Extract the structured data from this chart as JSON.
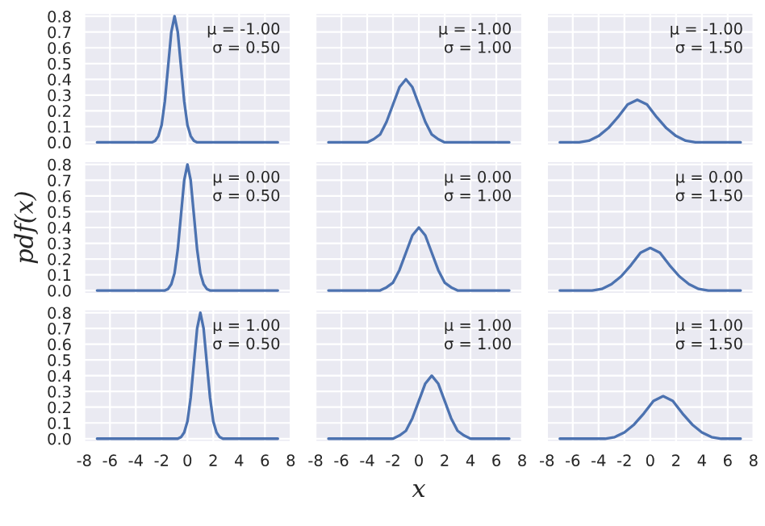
{
  "chart_data": [
    {
      "type": "line",
      "x": [
        -7,
        -3,
        -2.75,
        -2.5,
        -2.25,
        -2,
        -1.75,
        -1.5,
        -1.25,
        -1,
        -0.75,
        -0.5,
        -0.25,
        0,
        0.25,
        0.5,
        0.75,
        1,
        7
      ],
      "values": [
        0,
        0,
        0,
        0.01,
        0.04,
        0.11,
        0.26,
        0.48,
        0.7,
        0.8,
        0.7,
        0.48,
        0.26,
        0.11,
        0.04,
        0.01,
        0,
        0,
        0
      ],
      "color": "#4c72b0",
      "annotations": [
        "μ = -1.00",
        "σ = 0.50"
      ],
      "xlim": [
        -8,
        8
      ],
      "ylim": [
        -0.02,
        0.82
      ],
      "xticks": [
        {
          "value": -8,
          "label": null
        },
        {
          "value": -6,
          "label": null
        },
        {
          "value": -4,
          "label": null
        },
        {
          "value": -2,
          "label": null
        },
        {
          "value": 0,
          "label": null
        },
        {
          "value": 2,
          "label": null
        },
        {
          "value": 4,
          "label": null
        },
        {
          "value": 6,
          "label": null
        },
        {
          "value": 8,
          "label": null
        }
      ],
      "yticks": [
        {
          "value": 0,
          "label": "0.0"
        },
        {
          "value": 0.1,
          "label": "0.1"
        },
        {
          "value": 0.2,
          "label": "0.2"
        },
        {
          "value": 0.3,
          "label": "0.3"
        },
        {
          "value": 0.4,
          "label": "0.4"
        },
        {
          "value": 0.5,
          "label": "0.5"
        },
        {
          "value": 0.6,
          "label": "0.6"
        },
        {
          "value": 0.7,
          "label": "0.7"
        },
        {
          "value": 0.8,
          "label": "0.8"
        }
      ],
      "grid": true,
      "tick_labels": "y"
    },
    {
      "type": "line",
      "x": [
        -7,
        -5,
        -4.5,
        -4,
        -3.5,
        -3,
        -2.5,
        -2,
        -1.5,
        -1,
        -0.5,
        0,
        0.5,
        1,
        1.5,
        2,
        2.5,
        3,
        7
      ],
      "values": [
        0,
        0,
        0,
        0,
        0.02,
        0.05,
        0.13,
        0.24,
        0.35,
        0.4,
        0.35,
        0.24,
        0.13,
        0.05,
        0.02,
        0,
        0,
        0,
        0
      ],
      "color": "#4c72b0",
      "annotations": [
        "μ = -1.00",
        "σ = 1.00"
      ],
      "xlim": [
        -8,
        8
      ],
      "ylim": [
        -0.02,
        0.82
      ],
      "xticks": [
        {
          "value": -8,
          "label": null
        },
        {
          "value": -6,
          "label": null
        },
        {
          "value": -4,
          "label": null
        },
        {
          "value": -2,
          "label": null
        },
        {
          "value": 0,
          "label": null
        },
        {
          "value": 2,
          "label": null
        },
        {
          "value": 4,
          "label": null
        },
        {
          "value": 6,
          "label": null
        },
        {
          "value": 8,
          "label": null
        }
      ],
      "yticks": [
        {
          "value": 0,
          "label": null
        },
        {
          "value": 0.1,
          "label": null
        },
        {
          "value": 0.2,
          "label": null
        },
        {
          "value": 0.3,
          "label": null
        },
        {
          "value": 0.4,
          "label": null
        },
        {
          "value": 0.5,
          "label": null
        },
        {
          "value": 0.6,
          "label": null
        },
        {
          "value": 0.7,
          "label": null
        },
        {
          "value": 0.8,
          "label": null
        }
      ],
      "grid": true,
      "tick_labels": false
    },
    {
      "type": "line",
      "x": [
        -7,
        -6.25,
        -5.5,
        -4.75,
        -4,
        -3.25,
        -2.5,
        -1.75,
        -1,
        -0.25,
        0.5,
        1.25,
        2,
        2.75,
        3.5,
        4.25,
        5,
        7
      ],
      "values": [
        0,
        0,
        0,
        0.01,
        0.04,
        0.09,
        0.16,
        0.24,
        0.27,
        0.24,
        0.16,
        0.09,
        0.04,
        0.01,
        0,
        0,
        0,
        0
      ],
      "color": "#4c72b0",
      "annotations": [
        "μ = -1.00",
        "σ = 1.50"
      ],
      "xlim": [
        -8,
        8
      ],
      "ylim": [
        -0.02,
        0.82
      ],
      "xticks": [
        {
          "value": -8,
          "label": null
        },
        {
          "value": -6,
          "label": null
        },
        {
          "value": -4,
          "label": null
        },
        {
          "value": -2,
          "label": null
        },
        {
          "value": 0,
          "label": null
        },
        {
          "value": 2,
          "label": null
        },
        {
          "value": 4,
          "label": null
        },
        {
          "value": 6,
          "label": null
        },
        {
          "value": 8,
          "label": null
        }
      ],
      "yticks": [
        {
          "value": 0,
          "label": null
        },
        {
          "value": 0.1,
          "label": null
        },
        {
          "value": 0.2,
          "label": null
        },
        {
          "value": 0.3,
          "label": null
        },
        {
          "value": 0.4,
          "label": null
        },
        {
          "value": 0.5,
          "label": null
        },
        {
          "value": 0.6,
          "label": null
        },
        {
          "value": 0.7,
          "label": null
        },
        {
          "value": 0.8,
          "label": null
        }
      ],
      "grid": true,
      "tick_labels": false
    },
    {
      "type": "line",
      "x": [
        -7,
        -2,
        -1.75,
        -1.5,
        -1.25,
        -1,
        -0.75,
        -0.5,
        -0.25,
        0,
        0.25,
        0.5,
        0.75,
        1,
        1.25,
        1.5,
        1.75,
        2,
        7
      ],
      "values": [
        0,
        0,
        0,
        0.01,
        0.04,
        0.11,
        0.26,
        0.48,
        0.7,
        0.8,
        0.7,
        0.48,
        0.26,
        0.11,
        0.04,
        0.01,
        0,
        0,
        0
      ],
      "color": "#4c72b0",
      "annotations": [
        "μ = 0.00",
        "σ = 0.50"
      ],
      "ylabel": "pdf(x)",
      "xlim": [
        -8,
        8
      ],
      "ylim": [
        -0.02,
        0.82
      ],
      "xticks": [
        {
          "value": -8,
          "label": null
        },
        {
          "value": -6,
          "label": null
        },
        {
          "value": -4,
          "label": null
        },
        {
          "value": -2,
          "label": null
        },
        {
          "value": 0,
          "label": null
        },
        {
          "value": 2,
          "label": null
        },
        {
          "value": 4,
          "label": null
        },
        {
          "value": 6,
          "label": null
        },
        {
          "value": 8,
          "label": null
        }
      ],
      "yticks": [
        {
          "value": 0,
          "label": "0.0"
        },
        {
          "value": 0.1,
          "label": "0.1"
        },
        {
          "value": 0.2,
          "label": "0.2"
        },
        {
          "value": 0.3,
          "label": "0.3"
        },
        {
          "value": 0.4,
          "label": "0.4"
        },
        {
          "value": 0.5,
          "label": "0.5"
        },
        {
          "value": 0.6,
          "label": "0.6"
        },
        {
          "value": 0.7,
          "label": "0.7"
        },
        {
          "value": 0.8,
          "label": "0.8"
        }
      ],
      "grid": true,
      "tick_labels": "y"
    },
    {
      "type": "line",
      "x": [
        -7,
        -4,
        -3.5,
        -3,
        -2.5,
        -2,
        -1.5,
        -1,
        -0.5,
        0,
        0.5,
        1,
        1.5,
        2,
        2.5,
        3,
        3.5,
        4,
        7
      ],
      "values": [
        0,
        0,
        0,
        0,
        0.02,
        0.05,
        0.13,
        0.24,
        0.35,
        0.4,
        0.35,
        0.24,
        0.13,
        0.05,
        0.02,
        0,
        0,
        0,
        0
      ],
      "color": "#4c72b0",
      "annotations": [
        "μ = 0.00",
        "σ = 1.00"
      ],
      "xlim": [
        -8,
        8
      ],
      "ylim": [
        -0.02,
        0.82
      ],
      "xticks": [
        {
          "value": -8,
          "label": null
        },
        {
          "value": -6,
          "label": null
        },
        {
          "value": -4,
          "label": null
        },
        {
          "value": -2,
          "label": null
        },
        {
          "value": 0,
          "label": null
        },
        {
          "value": 2,
          "label": null
        },
        {
          "value": 4,
          "label": null
        },
        {
          "value": 6,
          "label": null
        },
        {
          "value": 8,
          "label": null
        }
      ],
      "yticks": [
        {
          "value": 0,
          "label": null
        },
        {
          "value": 0.1,
          "label": null
        },
        {
          "value": 0.2,
          "label": null
        },
        {
          "value": 0.3,
          "label": null
        },
        {
          "value": 0.4,
          "label": null
        },
        {
          "value": 0.5,
          "label": null
        },
        {
          "value": 0.6,
          "label": null
        },
        {
          "value": 0.7,
          "label": null
        },
        {
          "value": 0.8,
          "label": null
        }
      ],
      "grid": true,
      "tick_labels": false
    },
    {
      "type": "line",
      "x": [
        -7,
        -6,
        -5.25,
        -4.5,
        -3.75,
        -3,
        -2.25,
        -1.5,
        -0.75,
        0,
        0.75,
        1.5,
        2.25,
        3,
        3.75,
        4.5,
        5.25,
        6,
        7
      ],
      "values": [
        0,
        0,
        0,
        0,
        0.01,
        0.04,
        0.09,
        0.16,
        0.24,
        0.27,
        0.24,
        0.16,
        0.09,
        0.04,
        0.01,
        0,
        0,
        0,
        0
      ],
      "color": "#4c72b0",
      "annotations": [
        "μ = 0.00",
        "σ = 1.50"
      ],
      "xlim": [
        -8,
        8
      ],
      "ylim": [
        -0.02,
        0.82
      ],
      "xticks": [
        {
          "value": -8,
          "label": null
        },
        {
          "value": -6,
          "label": null
        },
        {
          "value": -4,
          "label": null
        },
        {
          "value": -2,
          "label": null
        },
        {
          "value": 0,
          "label": null
        },
        {
          "value": 2,
          "label": null
        },
        {
          "value": 4,
          "label": null
        },
        {
          "value": 6,
          "label": null
        },
        {
          "value": 8,
          "label": null
        }
      ],
      "yticks": [
        {
          "value": 0,
          "label": null
        },
        {
          "value": 0.1,
          "label": null
        },
        {
          "value": 0.2,
          "label": null
        },
        {
          "value": 0.3,
          "label": null
        },
        {
          "value": 0.4,
          "label": null
        },
        {
          "value": 0.5,
          "label": null
        },
        {
          "value": 0.6,
          "label": null
        },
        {
          "value": 0.7,
          "label": null
        },
        {
          "value": 0.8,
          "label": null
        }
      ],
      "grid": true,
      "tick_labels": false
    },
    {
      "type": "line",
      "x": [
        -7,
        -1,
        -0.75,
        -0.5,
        -0.25,
        0,
        0.25,
        0.5,
        0.75,
        1,
        1.25,
        1.5,
        1.75,
        2,
        2.25,
        2.5,
        2.75,
        3,
        7
      ],
      "values": [
        0,
        0,
        0,
        0.01,
        0.04,
        0.11,
        0.26,
        0.48,
        0.7,
        0.8,
        0.7,
        0.48,
        0.26,
        0.11,
        0.04,
        0.01,
        0,
        0,
        0
      ],
      "color": "#4c72b0",
      "annotations": [
        "μ = 1.00",
        "σ = 0.50"
      ],
      "xlim": [
        -8,
        8
      ],
      "ylim": [
        -0.02,
        0.82
      ],
      "xticks": [
        -8,
        -6,
        -4,
        -2,
        0,
        2,
        4,
        6,
        8
      ],
      "yticks": [
        {
          "value": 0,
          "label": "0.0"
        },
        {
          "value": 0.1,
          "label": "0.1"
        },
        {
          "value": 0.2,
          "label": "0.2"
        },
        {
          "value": 0.3,
          "label": "0.3"
        },
        {
          "value": 0.4,
          "label": "0.4"
        },
        {
          "value": 0.5,
          "label": "0.5"
        },
        {
          "value": 0.6,
          "label": "0.6"
        },
        {
          "value": 0.7,
          "label": "0.7"
        },
        {
          "value": 0.8,
          "label": "0.8"
        }
      ],
      "grid": true
    },
    {
      "type": "line",
      "x": [
        -7,
        -3,
        -2.5,
        -2,
        -1.5,
        -1,
        -0.5,
        0,
        0.5,
        1,
        1.5,
        2,
        2.5,
        3,
        3.5,
        4,
        4.5,
        5,
        7
      ],
      "values": [
        0,
        0,
        0,
        0,
        0.02,
        0.05,
        0.13,
        0.24,
        0.35,
        0.4,
        0.35,
        0.24,
        0.13,
        0.05,
        0.02,
        0,
        0,
        0,
        0
      ],
      "color": "#4c72b0",
      "annotations": [
        "μ = 1.00",
        "σ = 1.00"
      ],
      "xlabel": "x",
      "xlim": [
        -8,
        8
      ],
      "ylim": [
        -0.02,
        0.82
      ],
      "xticks": [
        -8,
        -6,
        -4,
        -2,
        0,
        2,
        4,
        6,
        8
      ],
      "yticks": [
        {
          "value": 0,
          "label": null
        },
        {
          "value": 0.1,
          "label": null
        },
        {
          "value": 0.2,
          "label": null
        },
        {
          "value": 0.3,
          "label": null
        },
        {
          "value": 0.4,
          "label": null
        },
        {
          "value": 0.5,
          "label": null
        },
        {
          "value": 0.6,
          "label": null
        },
        {
          "value": 0.7,
          "label": null
        },
        {
          "value": 0.8,
          "label": null
        }
      ],
      "grid": true,
      "tick_labels": "x"
    },
    {
      "type": "line",
      "x": [
        -7,
        -5,
        -4.25,
        -3.5,
        -2.75,
        -2,
        -1.25,
        -0.5,
        0.25,
        1,
        1.75,
        2.5,
        3.25,
        4,
        4.75,
        5.5,
        6.25,
        7
      ],
      "values": [
        0,
        0,
        0,
        0,
        0.01,
        0.04,
        0.09,
        0.16,
        0.24,
        0.27,
        0.24,
        0.16,
        0.09,
        0.04,
        0.01,
        0,
        0,
        0
      ],
      "color": "#4c72b0",
      "annotations": [
        "μ = 1.00",
        "σ = 1.50"
      ],
      "xlim": [
        -8,
        8
      ],
      "ylim": [
        -0.02,
        0.82
      ],
      "xticks": [
        -8,
        -6,
        -4,
        -2,
        0,
        2,
        4,
        6,
        8
      ],
      "yticks": [
        {
          "value": 0,
          "label": null
        },
        {
          "value": 0.1,
          "label": null
        },
        {
          "value": 0.2,
          "label": null
        },
        {
          "value": 0.3,
          "label": null
        },
        {
          "value": 0.4,
          "label": null
        },
        {
          "value": 0.5,
          "label": null
        },
        {
          "value": 0.6,
          "label": null
        },
        {
          "value": 0.7,
          "label": null
        },
        {
          "value": 0.8,
          "label": null
        }
      ],
      "grid": true,
      "tick_labels": "x"
    }
  ]
}
